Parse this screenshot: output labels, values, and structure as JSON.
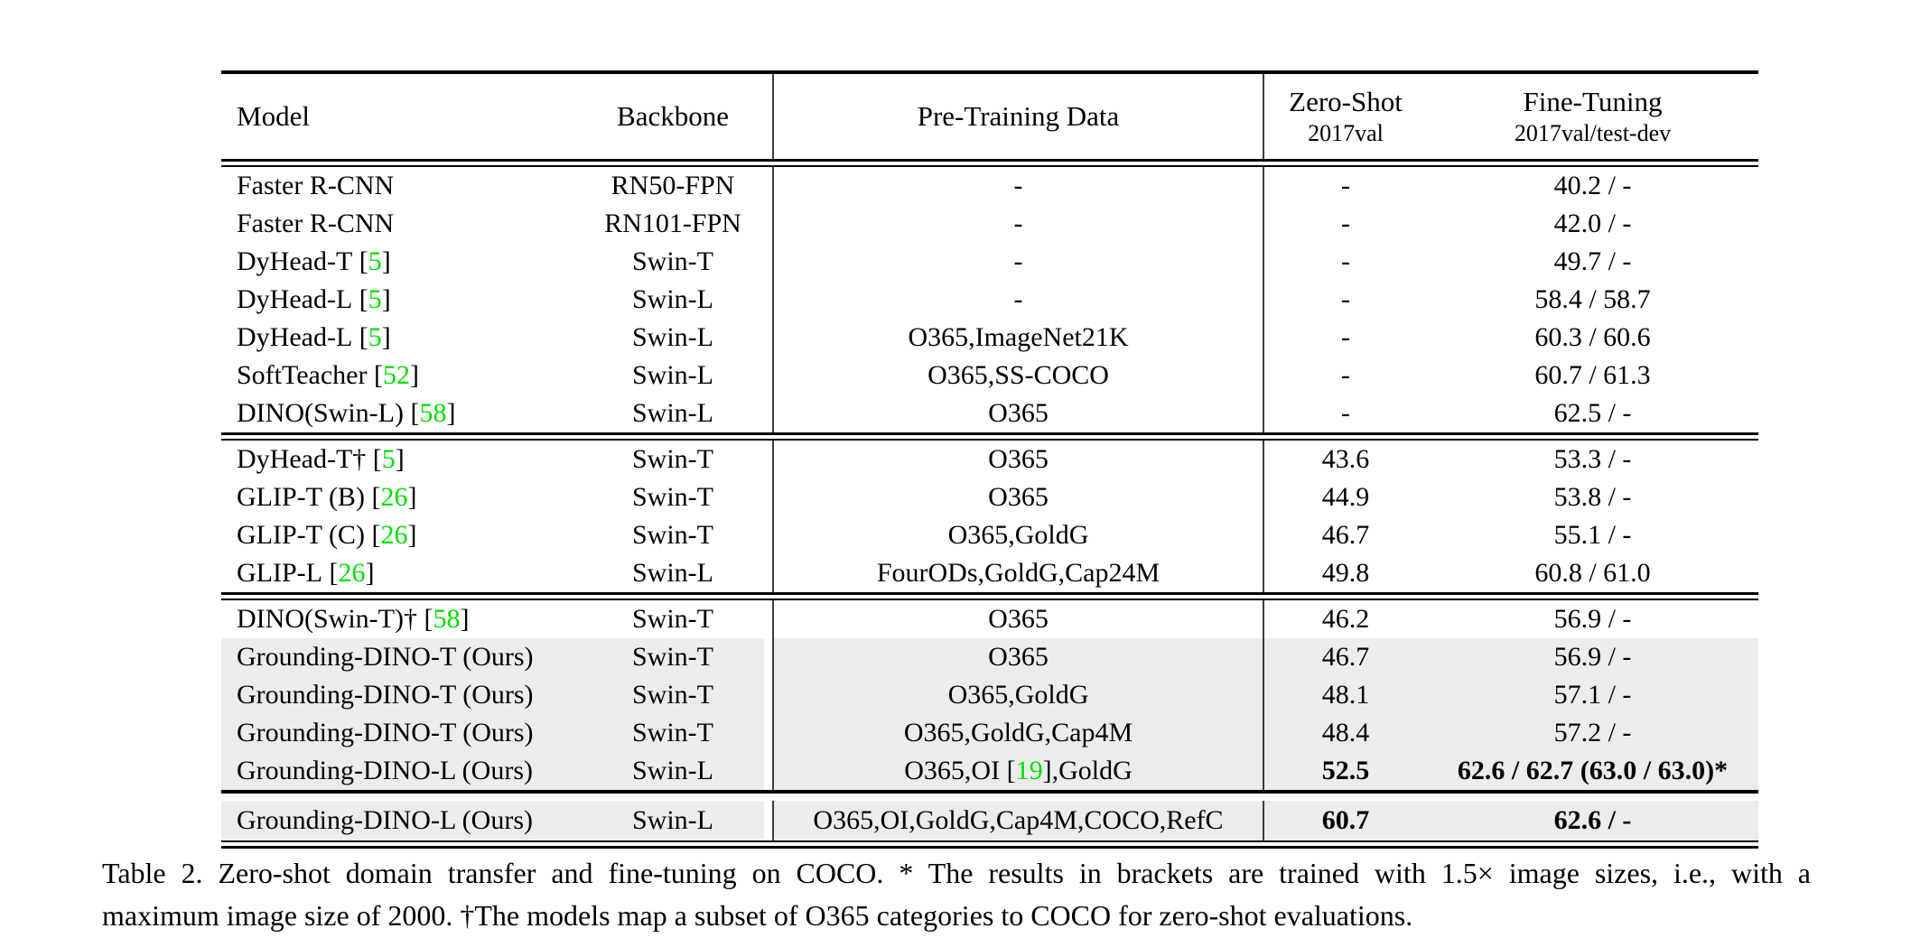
{
  "table": {
    "header": {
      "model": "Model",
      "backbone": "Backbone",
      "pretrain": "Pre-Training Data",
      "zeroshot": {
        "line1": "Zero-Shot",
        "line2": "2017val"
      },
      "finetune": {
        "line1": "Fine-Tuning",
        "line2": "2017val/test-dev"
      }
    },
    "ref_color": "#00DF00",
    "highlight_color": "#ECECEC",
    "blocks": [
      {
        "rows": [
          {
            "model": "Faster R-CNN",
            "ref": null,
            "backbone": "RN50-FPN",
            "pretrain": "-",
            "zeroshot": "-",
            "finetune": "40.2 / -"
          },
          {
            "model": "Faster R-CNN",
            "ref": null,
            "backbone": "RN101-FPN",
            "pretrain": "-",
            "zeroshot": "-",
            "finetune": "42.0 / -"
          },
          {
            "model": "DyHead-T",
            "ref": "5",
            "backbone": "Swin-T",
            "pretrain": "-",
            "zeroshot": "-",
            "finetune": "49.7 / -"
          },
          {
            "model": "DyHead-L",
            "ref": "5",
            "backbone": "Swin-L",
            "pretrain": "-",
            "zeroshot": "-",
            "finetune": "58.4 / 58.7"
          },
          {
            "model": "DyHead-L",
            "ref": "5",
            "backbone": "Swin-L",
            "pretrain": "O365,ImageNet21K",
            "zeroshot": "-",
            "finetune": "60.3 / 60.6"
          },
          {
            "model": "SoftTeacher",
            "ref": "52",
            "backbone": "Swin-L",
            "pretrain": "O365,SS-COCO",
            "zeroshot": "-",
            "finetune": "60.7 / 61.3"
          },
          {
            "model": "DINO(Swin-L)",
            "ref": "58",
            "backbone": "Swin-L",
            "pretrain": "O365",
            "zeroshot": "-",
            "finetune": "62.5 / -"
          }
        ]
      },
      {
        "rows": [
          {
            "model": "DyHead-T†",
            "ref": "5",
            "backbone": "Swin-T",
            "pretrain": "O365",
            "zeroshot": "43.6",
            "finetune": "53.3 / -"
          },
          {
            "model": "GLIP-T (B)",
            "ref": "26",
            "backbone": "Swin-T",
            "pretrain": "O365",
            "zeroshot": "44.9",
            "finetune": "53.8 / -"
          },
          {
            "model": "GLIP-T (C)",
            "ref": "26",
            "backbone": "Swin-T",
            "pretrain": "O365,GoldG",
            "zeroshot": "46.7",
            "finetune": "55.1 / -"
          },
          {
            "model": "GLIP-L",
            "ref": "26",
            "backbone": "Swin-L",
            "pretrain": "FourODs,GoldG,Cap24M",
            "zeroshot": "49.8",
            "finetune": "60.8 / 61.0"
          }
        ]
      },
      {
        "rows": [
          {
            "model": "DINO(Swin-T)†",
            "ref": "58",
            "backbone": "Swin-T",
            "pretrain": "O365",
            "zeroshot": "46.2",
            "finetune": "56.9 / -"
          },
          {
            "model": "Grounding-DINO-T (Ours)",
            "ref": null,
            "backbone": "Swin-T",
            "pretrain": "O365",
            "zeroshot": "46.7",
            "finetune": "56.9 / -",
            "hl": true
          },
          {
            "model": "Grounding-DINO-T (Ours)",
            "ref": null,
            "backbone": "Swin-T",
            "pretrain": "O365,GoldG",
            "zeroshot": "48.1",
            "finetune": "57.1 / -",
            "hl": true
          },
          {
            "model": "Grounding-DINO-T (Ours)",
            "ref": null,
            "backbone": "Swin-T",
            "pretrain": "O365,GoldG,Cap4M",
            "zeroshot": "48.4",
            "finetune": "57.2 / -",
            "hl": true
          },
          {
            "model": "Grounding-DINO-L (Ours)",
            "ref": null,
            "backbone": "Swin-L",
            "pretrain": [
              {
                "t": "O365,OI ["
              },
              {
                "t": "19",
                "ref": true
              },
              {
                "t": "],GoldG"
              }
            ],
            "zeroshot": "52.5",
            "finetune": "62.6 / 62.7 (63.0 / 63.0)*",
            "hl": true,
            "bold": true
          }
        ]
      },
      {
        "rows": [
          {
            "model": "Grounding-DINO-L (Ours)",
            "ref": null,
            "backbone": "Swin-L",
            "pretrain": "O365,OI,GoldG,Cap4M,COCO,RefC",
            "zeroshot": "60.7",
            "finetune": "62.6 / -",
            "hl": true,
            "bold": true
          }
        ]
      }
    ]
  },
  "caption": {
    "line1": "Table 2.  Zero-shot domain transfer and fine-tuning on COCO. * The results in brackets are trained with 1.5× image sizes, i.e., with a",
    "line2": "maximum image size of 2000. †The models map a subset of O365 categories to COCO for zero-shot evaluations."
  }
}
